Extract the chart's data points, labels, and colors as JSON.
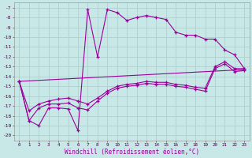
{
  "background_color": "#c8e8e8",
  "grid_color": "#b0d0d0",
  "line_color": "#990099",
  "xlabel": "Windchill (Refroidissement éolien,°C)",
  "xlim": [
    -0.5,
    23.5
  ],
  "ylim": [
    -20.5,
    -6.5
  ],
  "yticks": [
    -20,
    -19,
    -18,
    -17,
    -16,
    -15,
    -14,
    -13,
    -12,
    -11,
    -10,
    -9,
    -8,
    -7
  ],
  "xticks": [
    0,
    1,
    2,
    3,
    4,
    5,
    6,
    7,
    8,
    9,
    10,
    11,
    12,
    13,
    14,
    15,
    16,
    17,
    18,
    19,
    20,
    21,
    22,
    23
  ],
  "series1_x": [
    0,
    1,
    2,
    3,
    4,
    5,
    6,
    7,
    8,
    9,
    10,
    11,
    12,
    13,
    14,
    15,
    16,
    17,
    18,
    19,
    20,
    21,
    22,
    23
  ],
  "series1_y": [
    -14.5,
    -18.5,
    -19.0,
    -17.2,
    -17.2,
    -17.3,
    -19.5,
    -7.2,
    -12.0,
    -7.2,
    -7.5,
    -8.3,
    -8.0,
    -7.8,
    -8.0,
    -8.2,
    -9.5,
    -9.8,
    -9.8,
    -10.2,
    -10.2,
    -11.3,
    -11.8,
    -13.2
  ],
  "series2_x": [
    0,
    1,
    2,
    3,
    4,
    5,
    6,
    7,
    8,
    9,
    10,
    11,
    12,
    13,
    14,
    15,
    16,
    17,
    18,
    19,
    20,
    21,
    22,
    23
  ],
  "series2_y": [
    -14.5,
    -18.5,
    -17.2,
    -16.8,
    -16.8,
    -16.7,
    -17.2,
    -17.4,
    -16.5,
    -15.7,
    -15.2,
    -15.0,
    -14.9,
    -14.7,
    -14.8,
    -14.8,
    -15.0,
    -15.1,
    -15.3,
    -15.5,
    -13.2,
    -12.7,
    -13.5,
    -13.4
  ],
  "series3_x": [
    0,
    1,
    2,
    3,
    4,
    5,
    6,
    7,
    8,
    9,
    10,
    11,
    12,
    13,
    14,
    15,
    16,
    17,
    18,
    19,
    20,
    21,
    22,
    23
  ],
  "series3_y": [
    -14.5,
    -17.5,
    -16.8,
    -16.5,
    -16.3,
    -16.2,
    -16.5,
    -16.8,
    -16.2,
    -15.5,
    -15.0,
    -14.8,
    -14.7,
    -14.5,
    -14.6,
    -14.6,
    -14.8,
    -14.9,
    -15.1,
    -15.2,
    -13.0,
    -12.5,
    -13.2,
    -13.2
  ],
  "series4_x": [
    0,
    23
  ],
  "series4_y": [
    -14.5,
    -13.3
  ]
}
